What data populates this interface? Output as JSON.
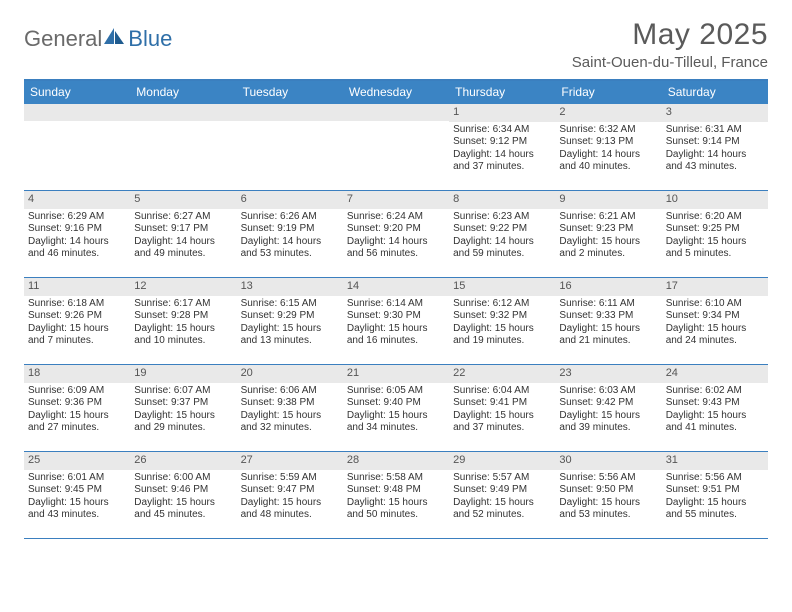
{
  "logo": {
    "text1": "General",
    "text2": "Blue"
  },
  "title": "May 2025",
  "location": "Saint-Ouen-du-Tilleul, France",
  "colors": {
    "header_bar": "#3b84c4",
    "rule": "#3b7fbf",
    "daynum_bg": "#e9e9e9",
    "text": "#333333",
    "muted": "#5a5a5a",
    "logo_gray": "#6a6a6a",
    "logo_blue": "#2f6fa8"
  },
  "weekdays": [
    "Sunday",
    "Monday",
    "Tuesday",
    "Wednesday",
    "Thursday",
    "Friday",
    "Saturday"
  ],
  "weeks": [
    [
      null,
      null,
      null,
      null,
      {
        "n": "1",
        "sr": "6:34 AM",
        "ss": "9:12 PM",
        "dh": "14",
        "dm": "37"
      },
      {
        "n": "2",
        "sr": "6:32 AM",
        "ss": "9:13 PM",
        "dh": "14",
        "dm": "40"
      },
      {
        "n": "3",
        "sr": "6:31 AM",
        "ss": "9:14 PM",
        "dh": "14",
        "dm": "43"
      }
    ],
    [
      {
        "n": "4",
        "sr": "6:29 AM",
        "ss": "9:16 PM",
        "dh": "14",
        "dm": "46"
      },
      {
        "n": "5",
        "sr": "6:27 AM",
        "ss": "9:17 PM",
        "dh": "14",
        "dm": "49"
      },
      {
        "n": "6",
        "sr": "6:26 AM",
        "ss": "9:19 PM",
        "dh": "14",
        "dm": "53"
      },
      {
        "n": "7",
        "sr": "6:24 AM",
        "ss": "9:20 PM",
        "dh": "14",
        "dm": "56"
      },
      {
        "n": "8",
        "sr": "6:23 AM",
        "ss": "9:22 PM",
        "dh": "14",
        "dm": "59"
      },
      {
        "n": "9",
        "sr": "6:21 AM",
        "ss": "9:23 PM",
        "dh": "15",
        "dm": "2"
      },
      {
        "n": "10",
        "sr": "6:20 AM",
        "ss": "9:25 PM",
        "dh": "15",
        "dm": "5"
      }
    ],
    [
      {
        "n": "11",
        "sr": "6:18 AM",
        "ss": "9:26 PM",
        "dh": "15",
        "dm": "7"
      },
      {
        "n": "12",
        "sr": "6:17 AM",
        "ss": "9:28 PM",
        "dh": "15",
        "dm": "10"
      },
      {
        "n": "13",
        "sr": "6:15 AM",
        "ss": "9:29 PM",
        "dh": "15",
        "dm": "13"
      },
      {
        "n": "14",
        "sr": "6:14 AM",
        "ss": "9:30 PM",
        "dh": "15",
        "dm": "16"
      },
      {
        "n": "15",
        "sr": "6:12 AM",
        "ss": "9:32 PM",
        "dh": "15",
        "dm": "19"
      },
      {
        "n": "16",
        "sr": "6:11 AM",
        "ss": "9:33 PM",
        "dh": "15",
        "dm": "21"
      },
      {
        "n": "17",
        "sr": "6:10 AM",
        "ss": "9:34 PM",
        "dh": "15",
        "dm": "24"
      }
    ],
    [
      {
        "n": "18",
        "sr": "6:09 AM",
        "ss": "9:36 PM",
        "dh": "15",
        "dm": "27"
      },
      {
        "n": "19",
        "sr": "6:07 AM",
        "ss": "9:37 PM",
        "dh": "15",
        "dm": "29"
      },
      {
        "n": "20",
        "sr": "6:06 AM",
        "ss": "9:38 PM",
        "dh": "15",
        "dm": "32"
      },
      {
        "n": "21",
        "sr": "6:05 AM",
        "ss": "9:40 PM",
        "dh": "15",
        "dm": "34"
      },
      {
        "n": "22",
        "sr": "6:04 AM",
        "ss": "9:41 PM",
        "dh": "15",
        "dm": "37"
      },
      {
        "n": "23",
        "sr": "6:03 AM",
        "ss": "9:42 PM",
        "dh": "15",
        "dm": "39"
      },
      {
        "n": "24",
        "sr": "6:02 AM",
        "ss": "9:43 PM",
        "dh": "15",
        "dm": "41"
      }
    ],
    [
      {
        "n": "25",
        "sr": "6:01 AM",
        "ss": "9:45 PM",
        "dh": "15",
        "dm": "43"
      },
      {
        "n": "26",
        "sr": "6:00 AM",
        "ss": "9:46 PM",
        "dh": "15",
        "dm": "45"
      },
      {
        "n": "27",
        "sr": "5:59 AM",
        "ss": "9:47 PM",
        "dh": "15",
        "dm": "48"
      },
      {
        "n": "28",
        "sr": "5:58 AM",
        "ss": "9:48 PM",
        "dh": "15",
        "dm": "50"
      },
      {
        "n": "29",
        "sr": "5:57 AM",
        "ss": "9:49 PM",
        "dh": "15",
        "dm": "52"
      },
      {
        "n": "30",
        "sr": "5:56 AM",
        "ss": "9:50 PM",
        "dh": "15",
        "dm": "53"
      },
      {
        "n": "31",
        "sr": "5:56 AM",
        "ss": "9:51 PM",
        "dh": "15",
        "dm": "55"
      }
    ]
  ],
  "labels": {
    "sunrise": "Sunrise:",
    "sunset": "Sunset:",
    "daylight": "Daylight:",
    "hours_and": "hours and",
    "minutes": "minutes."
  }
}
